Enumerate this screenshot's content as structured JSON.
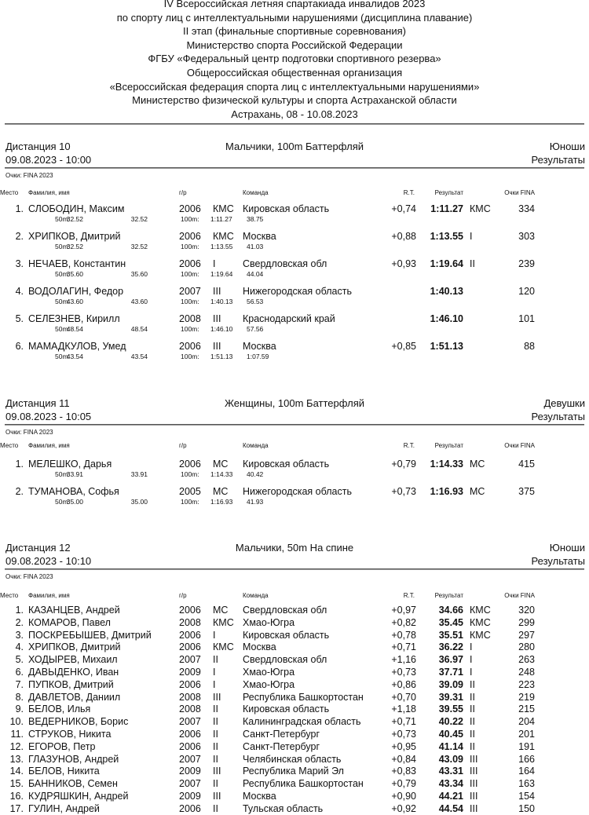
{
  "header": {
    "lines": [
      "IV Всероссийская летняя спартакиада инвалидов 2023",
      "по спорту лиц с интеллектуальными нарушениями (дисциплина плавание)",
      "II этап (финальные спортивные соревнования)",
      "Министерство спорта Российской Федерации",
      "ФГБУ «Федеральный центр подготовки спортивного резерва»",
      "Общероссийская общественная организация",
      "«Всероссийская федерация спорта лиц с интеллектуальными нарушениями»",
      "Министерство физической культуры и спорта Астраханской области",
      "Астрахань, 08 - 10.08.2023"
    ]
  },
  "columns": {
    "place": "Место",
    "name": "Фамилия, имя",
    "year": "г/р",
    "team": "Команда",
    "rt": "R.T.",
    "result": "Результат",
    "points": "Очки FINA"
  },
  "sections": [
    {
      "distance": "Дистанция 10",
      "datetime": "09.08.2023 - 10:00",
      "event": "Мальчики, 100m Баттерфляй",
      "group": "Юноши",
      "status": "Результаты",
      "points_note": "Очки: FINA 2023",
      "rows": [
        {
          "place": "1.",
          "name": "СЛОБОДИН, Максим",
          "year": "2006",
          "rank": "КМС",
          "team": "Кировская область",
          "rt": "+0,74",
          "result": "1:11.27",
          "result_rank": "КМС",
          "points": "334",
          "splits": [
            "50m:",
            "32.52",
            "32.52",
            "100m:",
            "1:11.27",
            "38.75"
          ]
        },
        {
          "place": "2.",
          "name": "ХРИПКОВ, Дмитрий",
          "year": "2006",
          "rank": "КМС",
          "team": "Москва",
          "rt": "+0,88",
          "result": "1:13.55",
          "result_rank": "I",
          "points": "303",
          "splits": [
            "50m:",
            "32.52",
            "32.52",
            "100m:",
            "1:13.55",
            "41.03"
          ]
        },
        {
          "place": "3.",
          "name": "НЕЧАЕВ, Константин",
          "year": "2006",
          "rank": "I",
          "team": "Свердловская обл",
          "rt": "+0,93",
          "result": "1:19.64",
          "result_rank": "II",
          "points": "239",
          "splits": [
            "50m:",
            "35.60",
            "35.60",
            "100m:",
            "1:19.64",
            "44.04"
          ]
        },
        {
          "place": "4.",
          "name": "ВОДОЛАГИН, Федор",
          "year": "2007",
          "rank": "III",
          "team": "Нижегородская область",
          "rt": "",
          "result": "1:40.13",
          "result_rank": "",
          "points": "120",
          "splits": [
            "50m:",
            "43.60",
            "43.60",
            "100m:",
            "1:40.13",
            "56.53"
          ]
        },
        {
          "place": "5.",
          "name": "СЕЛЕЗНЕВ, Кирилл",
          "year": "2008",
          "rank": "III",
          "team": "Краснодарский край",
          "rt": "",
          "result": "1:46.10",
          "result_rank": "",
          "points": "101",
          "splits": [
            "50m:",
            "48.54",
            "48.54",
            "100m:",
            "1:46.10",
            "57.56"
          ]
        },
        {
          "place": "6.",
          "name": "МАМАДКУЛОВ, Умед",
          "year": "2006",
          "rank": "III",
          "team": "Москва",
          "rt": "+0,85",
          "result": "1:51.13",
          "result_rank": "",
          "points": "88",
          "splits": [
            "50m:",
            "43.54",
            "43.54",
            "100m:",
            "1:51.13",
            "1:07.59"
          ]
        }
      ]
    },
    {
      "distance": "Дистанция 11",
      "datetime": "09.08.2023 - 10:05",
      "event": "Женщины, 100m Баттерфляй",
      "group": "Девушки",
      "status": "Результаты",
      "points_note": "Очки: FINA 2023",
      "rows": [
        {
          "place": "1.",
          "name": "МЕЛЕШКО, Дарья",
          "year": "2006",
          "rank": "МС",
          "team": "Кировская область",
          "rt": "+0,79",
          "result": "1:14.33",
          "result_rank": "МС",
          "points": "415",
          "splits": [
            "50m:",
            "33.91",
            "33.91",
            "100m:",
            "1:14.33",
            "40.42"
          ]
        },
        {
          "place": "2.",
          "name": "ТУМАНОВА, Софья",
          "year": "2005",
          "rank": "МС",
          "team": "Нижегородская область",
          "rt": "+0,73",
          "result": "1:16.93",
          "result_rank": "МС",
          "points": "375",
          "splits": [
            "50m:",
            "35.00",
            "35.00",
            "100m:",
            "1:16.93",
            "41.93"
          ]
        }
      ]
    },
    {
      "distance": "Дистанция 12",
      "datetime": "09.08.2023 - 10:10",
      "event": "Мальчики, 50m На спине",
      "group": "Юноши",
      "status": "Результаты",
      "points_note": "Очки: FINA 2023",
      "rows": [
        {
          "place": "1.",
          "name": "КАЗАНЦЕВ, Андрей",
          "year": "2006",
          "rank": "МС",
          "team": "Свердловская обл",
          "rt": "+0,97",
          "result": "34.66",
          "result_rank": "КМС",
          "points": "320"
        },
        {
          "place": "2.",
          "name": "КОМАРОВ, Павел",
          "year": "2008",
          "rank": "КМС",
          "team": "Хмао-Югра",
          "rt": "+0,82",
          "result": "35.45",
          "result_rank": "КМС",
          "points": "299"
        },
        {
          "place": "3.",
          "name": "ПОСКРЕБЫШЕВ, Дмитрий",
          "year": "2006",
          "rank": "I",
          "team": "Кировская область",
          "rt": "+0,78",
          "result": "35.51",
          "result_rank": "КМС",
          "points": "297"
        },
        {
          "place": "4.",
          "name": "ХРИПКОВ, Дмитрий",
          "year": "2006",
          "rank": "КМС",
          "team": "Москва",
          "rt": "+0,71",
          "result": "36.22",
          "result_rank": "I",
          "points": "280"
        },
        {
          "place": "5.",
          "name": "ХОДЫРЕВ, Михаил",
          "year": "2007",
          "rank": "II",
          "team": "Свердловская обл",
          "rt": "+1,16",
          "result": "36.97",
          "result_rank": "I",
          "points": "263"
        },
        {
          "place": "6.",
          "name": "ДАВЫДЕНКО, Иван",
          "year": "2009",
          "rank": "I",
          "team": "Хмао-Югра",
          "rt": "+0,73",
          "result": "37.71",
          "result_rank": "I",
          "points": "248"
        },
        {
          "place": "7.",
          "name": "ПУПКОВ, Дмитрий",
          "year": "2006",
          "rank": "I",
          "team": "Хмао-Югра",
          "rt": "+0,86",
          "result": "39.09",
          "result_rank": "II",
          "points": "223"
        },
        {
          "place": "8.",
          "name": "ДАВЛЕТОВ, Даниил",
          "year": "2008",
          "rank": "III",
          "team": "Республика Башкортостан",
          "rt": "+0,70",
          "result": "39.31",
          "result_rank": "II",
          "points": "219"
        },
        {
          "place": "9.",
          "name": "БЕЛОВ, Илья",
          "year": "2008",
          "rank": "II",
          "team": "Кировская область",
          "rt": "+1,18",
          "result": "39.55",
          "result_rank": "II",
          "points": "215"
        },
        {
          "place": "10.",
          "name": "ВЕДЕРНИКОВ, Борис",
          "year": "2007",
          "rank": "II",
          "team": "Калининградская область",
          "rt": "+0,71",
          "result": "40.22",
          "result_rank": "II",
          "points": "204"
        },
        {
          "place": "11.",
          "name": "СТРУКОВ, Никита",
          "year": "2006",
          "rank": "II",
          "team": "Санкт-Петербург",
          "rt": "+0,73",
          "result": "40.45",
          "result_rank": "II",
          "points": "201"
        },
        {
          "place": "12.",
          "name": "ЕГОРОВ, Петр",
          "year": "2006",
          "rank": "II",
          "team": "Санкт-Петербург",
          "rt": "+0,95",
          "result": "41.14",
          "result_rank": "II",
          "points": "191"
        },
        {
          "place": "13.",
          "name": "ГЛАЗУНОВ, Андрей",
          "year": "2007",
          "rank": "II",
          "team": "Челябинская область",
          "rt": "+0,84",
          "result": "43.09",
          "result_rank": "III",
          "points": "166"
        },
        {
          "place": "14.",
          "name": "БЕЛОВ, Никита",
          "year": "2009",
          "rank": "III",
          "team": "Республика Марий Эл",
          "rt": "+0,83",
          "result": "43.31",
          "result_rank": "III",
          "points": "164"
        },
        {
          "place": "15.",
          "name": "БАННИКОВ, Семен",
          "year": "2007",
          "rank": "II",
          "team": "Республика Башкортостан",
          "rt": "+0,79",
          "result": "43.34",
          "result_rank": "III",
          "points": "163"
        },
        {
          "place": "16.",
          "name": "КУДРЯШКИН, Андрей",
          "year": "2009",
          "rank": "III",
          "team": "Москва",
          "rt": "+0,90",
          "result": "44.21",
          "result_rank": "III",
          "points": "154"
        },
        {
          "place": "17.",
          "name": "ГУЛИН, Андрей",
          "year": "2006",
          "rank": "II",
          "team": "Тульская область",
          "rt": "+0,92",
          "result": "44.54",
          "result_rank": "III",
          "points": "150"
        }
      ]
    }
  ]
}
